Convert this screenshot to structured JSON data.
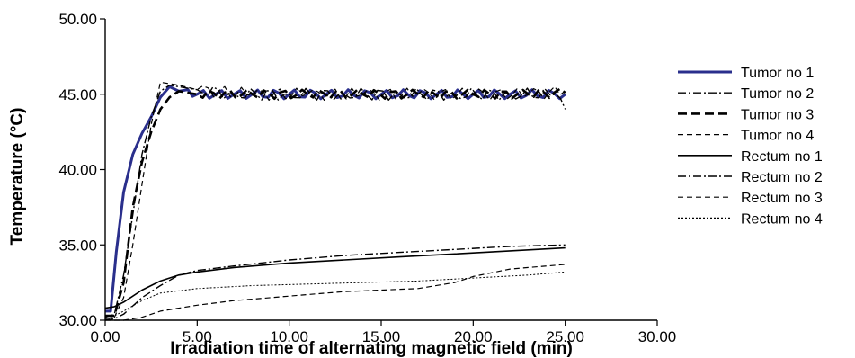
{
  "chart_data": {
    "type": "line",
    "title": "",
    "xlabel": "Irradiation time of  alternating magnetic field (min)",
    "ylabel": "Temperature (°C)",
    "xlim": [
      0,
      30
    ],
    "ylim": [
      30,
      50
    ],
    "xticks": [
      "0.00",
      "5.00",
      "10.00",
      "15.00",
      "20.00",
      "25.00",
      "30.00"
    ],
    "yticks": [
      "30.00",
      "35.00",
      "40.00",
      "45.00",
      "50.00"
    ],
    "grid": false,
    "legend_position": "right",
    "series": [
      {
        "name": "Tumor no 1",
        "color": "#2a2f8c",
        "style": "solid-thick",
        "points": [
          [
            0,
            30.6
          ],
          [
            0.3,
            30.6
          ],
          [
            0.6,
            34.5
          ],
          [
            1.0,
            38.5
          ],
          [
            1.5,
            41.0
          ],
          [
            2.0,
            42.4
          ],
          [
            2.5,
            43.5
          ],
          [
            3.0,
            44.8
          ],
          [
            3.5,
            45.5
          ],
          [
            4.0,
            45.2
          ],
          [
            4.5,
            45.3
          ],
          [
            5.0,
            45.0
          ],
          [
            6,
            45.0
          ],
          [
            7,
            45.0
          ],
          [
            8,
            45.0
          ],
          [
            10,
            45.0
          ],
          [
            12,
            45.0
          ],
          [
            15,
            45.0
          ],
          [
            18,
            45.0
          ],
          [
            20,
            45.0
          ],
          [
            22,
            45.0
          ],
          [
            25,
            45.0
          ]
        ]
      },
      {
        "name": "Tumor no 2",
        "color": "#000000",
        "style": "dash-dot",
        "points": [
          [
            0,
            30.2
          ],
          [
            0.5,
            30.4
          ],
          [
            1.0,
            33.0
          ],
          [
            1.5,
            37.0
          ],
          [
            2.0,
            41.0
          ],
          [
            2.5,
            43.5
          ],
          [
            3.0,
            45.2
          ],
          [
            3.5,
            45.6
          ],
          [
            4.0,
            45.5
          ],
          [
            5.0,
            45.3
          ],
          [
            7,
            45.0
          ],
          [
            10,
            45.0
          ],
          [
            13,
            45.0
          ],
          [
            16,
            45.0
          ],
          [
            19,
            45.0
          ],
          [
            22,
            45.0
          ],
          [
            24.5,
            45.0
          ],
          [
            25,
            44.0
          ]
        ]
      },
      {
        "name": "Tumor no 3",
        "color": "#000000",
        "style": "dash-thick",
        "points": [
          [
            0,
            30.3
          ],
          [
            0.5,
            30.3
          ],
          [
            1.0,
            32.5
          ],
          [
            1.5,
            37.5
          ],
          [
            2.0,
            40.5
          ],
          [
            2.5,
            42.5
          ],
          [
            3.0,
            44.0
          ],
          [
            3.5,
            44.8
          ],
          [
            4.0,
            45.2
          ],
          [
            5.0,
            45.0
          ],
          [
            8,
            45.0
          ],
          [
            11,
            45.0
          ],
          [
            14,
            45.0
          ],
          [
            17,
            45.0
          ],
          [
            20,
            45.0
          ],
          [
            23,
            45.0
          ],
          [
            25,
            45.1
          ]
        ]
      },
      {
        "name": "Tumor no 4",
        "color": "#000000",
        "style": "dash",
        "points": [
          [
            0,
            30.1
          ],
          [
            0.5,
            30.2
          ],
          [
            1.0,
            31.5
          ],
          [
            1.5,
            35.0
          ],
          [
            2.0,
            39.0
          ],
          [
            2.5,
            43.0
          ],
          [
            3.0,
            45.8
          ],
          [
            3.5,
            45.7
          ],
          [
            4.0,
            45.6
          ],
          [
            5.0,
            45.3
          ],
          [
            8,
            45.0
          ],
          [
            11,
            45.0
          ],
          [
            14,
            45.0
          ],
          [
            17,
            45.0
          ],
          [
            20,
            45.0
          ],
          [
            23,
            45.0
          ],
          [
            25,
            45.2
          ]
        ]
      },
      {
        "name": "Rectum no 1",
        "color": "#000000",
        "style": "solid",
        "points": [
          [
            0,
            30.8
          ],
          [
            0.5,
            30.9
          ],
          [
            1,
            31.2
          ],
          [
            2,
            32.0
          ],
          [
            3,
            32.6
          ],
          [
            4,
            33.0
          ],
          [
            5,
            33.2
          ],
          [
            7,
            33.5
          ],
          [
            10,
            33.8
          ],
          [
            13,
            34.0
          ],
          [
            16,
            34.2
          ],
          [
            19,
            34.4
          ],
          [
            22,
            34.6
          ],
          [
            25,
            34.8
          ]
        ]
      },
      {
        "name": "Rectum no 2",
        "color": "#000000",
        "style": "dash-dot",
        "points": [
          [
            0,
            30.0
          ],
          [
            0.5,
            30.1
          ],
          [
            1,
            30.4
          ],
          [
            2,
            31.5
          ],
          [
            3,
            32.3
          ],
          [
            4,
            33.0
          ],
          [
            5,
            33.3
          ],
          [
            7,
            33.6
          ],
          [
            10,
            34.0
          ],
          [
            13,
            34.3
          ],
          [
            16,
            34.5
          ],
          [
            19,
            34.7
          ],
          [
            22,
            34.9
          ],
          [
            25,
            35.0
          ]
        ]
      },
      {
        "name": "Rectum no 3",
        "color": "#000000",
        "style": "dash",
        "points": [
          [
            0,
            30.0
          ],
          [
            1,
            30.0
          ],
          [
            2,
            30.2
          ],
          [
            3,
            30.6
          ],
          [
            5,
            31.0
          ],
          [
            7,
            31.3
          ],
          [
            9,
            31.5
          ],
          [
            11,
            31.7
          ],
          [
            13,
            31.9
          ],
          [
            15,
            32.0
          ],
          [
            17,
            32.1
          ],
          [
            19,
            32.5
          ],
          [
            20,
            32.9
          ],
          [
            22,
            33.4
          ],
          [
            25,
            33.7
          ]
        ]
      },
      {
        "name": "Rectum no 4",
        "color": "#000000",
        "style": "dot",
        "points": [
          [
            0,
            30.0
          ],
          [
            1,
            30.6
          ],
          [
            2,
            31.3
          ],
          [
            3,
            31.8
          ],
          [
            5,
            32.1
          ],
          [
            8,
            32.3
          ],
          [
            11,
            32.4
          ],
          [
            14,
            32.5
          ],
          [
            17,
            32.6
          ],
          [
            20,
            32.8
          ],
          [
            23,
            33.0
          ],
          [
            25,
            33.2
          ]
        ]
      }
    ]
  }
}
